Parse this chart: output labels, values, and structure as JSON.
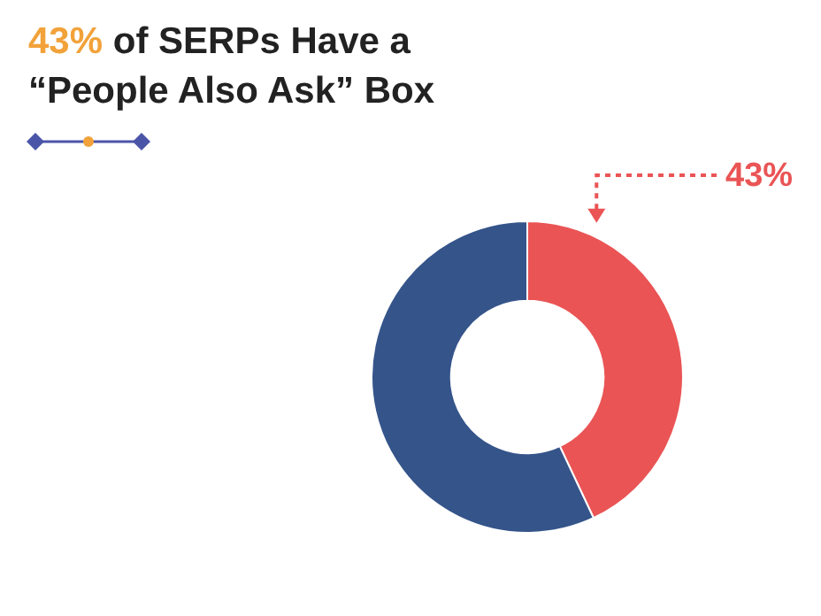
{
  "chart_data": {
    "type": "donut",
    "title": "43% of SERPs Have a “People Also Ask” Box",
    "categories": [
      null,
      null
    ],
    "values": [
      43,
      57
    ],
    "colors": [
      "#ea5455",
      "#34548a"
    ],
    "value_labels": [
      "43%",
      null
    ]
  }
}
